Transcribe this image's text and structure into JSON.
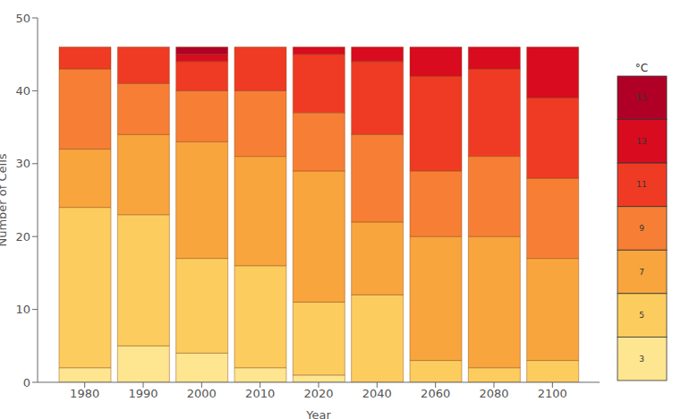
{
  "chart_data": {
    "type": "bar",
    "stacked": true,
    "grid": false,
    "legend": "right",
    "legend_title": "°C",
    "x_label": "Year",
    "y_label": "Number of Cells",
    "categories": [
      "1980",
      "1990",
      "2000",
      "2010",
      "2020",
      "2040",
      "2060",
      "2080",
      "2100"
    ],
    "ylim": [
      0,
      50
    ],
    "yticks": [
      0,
      10,
      20,
      30,
      40,
      50
    ],
    "series": [
      {
        "name": "3",
        "color": "#fee590",
        "values": [
          2,
          5,
          4,
          2,
          1,
          0,
          0,
          0,
          0
        ]
      },
      {
        "name": "5",
        "color": "#fccd5e",
        "values": [
          22,
          18,
          13,
          14,
          10,
          12,
          3,
          2,
          3
        ]
      },
      {
        "name": "7",
        "color": "#f9a53d",
        "values": [
          8,
          11,
          16,
          15,
          18,
          10,
          17,
          18,
          14
        ]
      },
      {
        "name": "9",
        "color": "#f77f35",
        "values": [
          11,
          7,
          7,
          9,
          8,
          12,
          9,
          11,
          11
        ]
      },
      {
        "name": "11",
        "color": "#f03b24",
        "values": [
          3,
          5,
          4,
          6,
          8,
          10,
          13,
          12,
          11
        ]
      },
      {
        "name": "13",
        "color": "#d80b1f",
        "values": [
          0,
          0,
          1,
          0,
          1,
          2,
          4,
          3,
          7
        ]
      },
      {
        "name": "15",
        "color": "#b10026",
        "values": [
          0,
          0,
          1,
          0,
          0,
          0,
          0,
          0,
          0
        ]
      }
    ]
  }
}
